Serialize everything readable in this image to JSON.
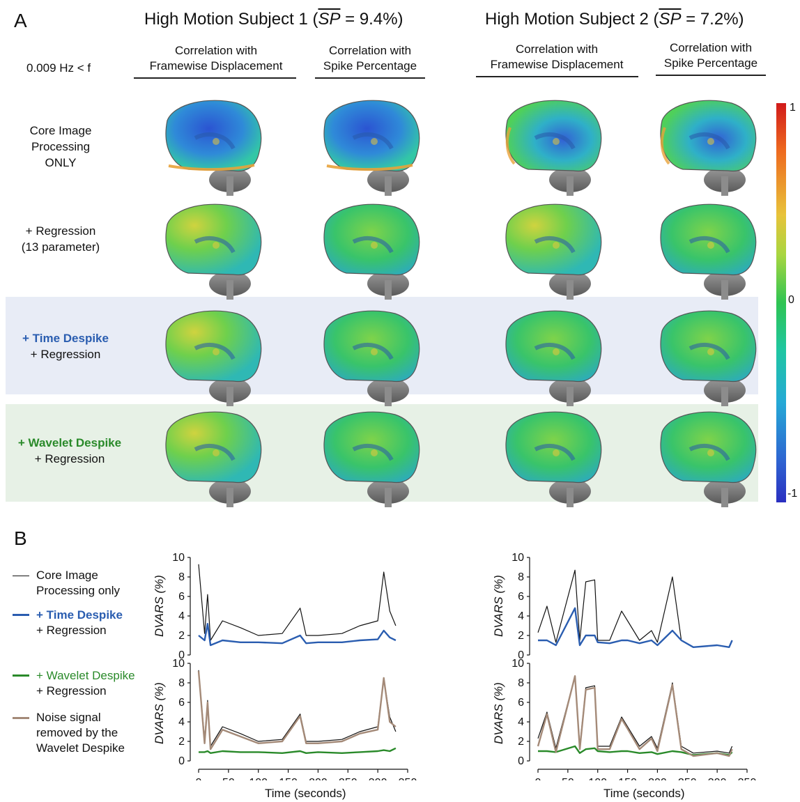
{
  "panelA": {
    "letter": "A",
    "subject1_title_pre": "High Motion Subject 1 (",
    "subject1_title_sym": "SP",
    "subject1_title_post": " = 9.4%)",
    "subject2_title_pre": "High Motion Subject 2 (",
    "subject2_title_sym": "SP",
    "subject2_title_post": " = 7.2%)",
    "freq_label": "0.009 Hz < f",
    "col_heads": [
      {
        "l1": "Correlation with",
        "l2": "Framewise Displacement"
      },
      {
        "l1": "Correlation with",
        "l2": "Spike Percentage"
      },
      {
        "l1": "Correlation with",
        "l2": "Framewise Displacement"
      },
      {
        "l1": "Correlation with",
        "l2": "Spike Percentage"
      }
    ],
    "rows": [
      {
        "l1": "Core Image",
        "l2": "Processing",
        "l3": "ONLY"
      },
      {
        "l1": "+ Regression",
        "l2": "(13 parameter)"
      },
      {
        "l1": "+ Time Despike",
        "l2": "+ Regression"
      },
      {
        "l1": "+ Wavelet Despike",
        "l2": "+ Regression"
      }
    ],
    "colorbar": {
      "max": "1",
      "mid": "0",
      "min": "-1"
    },
    "colors": {
      "time_band": "#e8ecf6",
      "wavelet_band": "#e7f1e6",
      "time_text": "#2a5db0",
      "wavelet_text": "#2a8a2a"
    }
  },
  "panelB": {
    "letter": "B",
    "legend": [
      {
        "l1": "Core Image",
        "l2": "Processing only",
        "color": "#111111"
      },
      {
        "l1": "+ Time Despike",
        "l2": "+ Regression",
        "color": "#2a5db0"
      },
      {
        "l1": "+ Wavelet Despike",
        "l2": "+ Regression",
        "color": "#2a8a2a"
      },
      {
        "l1": "Noise signal",
        "l2": "removed by the",
        "l3": "Wavelet Despike",
        "color": "#a48a78"
      }
    ],
    "ylabel": "DVARS (%)",
    "xlabel": "Time (seconds)",
    "yticks": [
      "10",
      "8",
      "6",
      "4",
      "2",
      "0"
    ],
    "xticks": [
      "0",
      "50",
      "100",
      "150",
      "200",
      "250",
      "300",
      "350"
    ]
  },
  "chart_data": [
    {
      "type": "line",
      "subject": 1,
      "xlabel": "Time (seconds)",
      "ylabel": "DVARS (%)",
      "xlim": [
        0,
        350
      ],
      "ylim": [
        0,
        10
      ],
      "x": [
        0,
        10,
        15,
        20,
        40,
        70,
        100,
        140,
        170,
        180,
        200,
        240,
        270,
        300,
        310,
        320,
        330
      ],
      "series": [
        {
          "name": "Core Image Processing only",
          "color": "#111111",
          "values": [
            9.3,
            2.2,
            6.2,
            1.5,
            3.5,
            2.8,
            2.0,
            2.2,
            4.8,
            2.0,
            2.0,
            2.2,
            3.0,
            3.5,
            8.5,
            4.5,
            3.0
          ]
        },
        {
          "name": "+ Time Despike + Regression",
          "color": "#2a5db0",
          "values": [
            2.0,
            1.5,
            3.2,
            1.0,
            1.5,
            1.3,
            1.3,
            1.2,
            2.0,
            1.2,
            1.3,
            1.3,
            1.5,
            1.6,
            2.5,
            1.8,
            1.5
          ]
        }
      ]
    },
    {
      "type": "line",
      "subject": 2,
      "xlabel": "Time (seconds)",
      "ylabel": "DVARS (%)",
      "xlim": [
        0,
        350
      ],
      "ylim": [
        0,
        10
      ],
      "x": [
        0,
        15,
        30,
        62,
        70,
        80,
        95,
        100,
        120,
        140,
        150,
        170,
        190,
        200,
        225,
        240,
        260,
        300,
        320,
        325
      ],
      "series": [
        {
          "name": "Core Image Processing only",
          "color": "#111111",
          "values": [
            2.3,
            5.0,
            1.3,
            8.7,
            1.5,
            7.5,
            7.7,
            1.5,
            1.5,
            4.5,
            3.5,
            1.5,
            2.5,
            1.3,
            8.0,
            1.5,
            0.8,
            1.0,
            0.8,
            1.5
          ]
        },
        {
          "name": "+ Time Despike + Regression",
          "color": "#2a5db0",
          "values": [
            1.5,
            1.5,
            1.0,
            4.8,
            1.0,
            2.0,
            2.0,
            1.3,
            1.2,
            1.5,
            1.5,
            1.2,
            1.5,
            1.0,
            2.5,
            1.5,
            0.8,
            1.0,
            0.8,
            1.5
          ]
        }
      ]
    },
    {
      "type": "line",
      "subject": 1,
      "xlabel": "Time (seconds)",
      "ylabel": "DVARS (%)",
      "xlim": [
        0,
        350
      ],
      "ylim": [
        0,
        10
      ],
      "x": [
        0,
        10,
        15,
        20,
        40,
        70,
        100,
        140,
        170,
        180,
        200,
        240,
        270,
        300,
        310,
        320,
        330
      ],
      "series": [
        {
          "name": "Core Image Processing only",
          "color": "#111111",
          "values": [
            9.3,
            2.2,
            6.2,
            1.5,
            3.5,
            2.8,
            2.0,
            2.2,
            4.8,
            2.0,
            2.0,
            2.2,
            3.0,
            3.5,
            8.5,
            4.5,
            3.0
          ]
        },
        {
          "name": "+ Wavelet Despike + Regression",
          "color": "#2a8a2a",
          "values": [
            0.9,
            0.9,
            1.0,
            0.8,
            1.0,
            0.9,
            0.9,
            0.8,
            1.0,
            0.8,
            0.9,
            0.8,
            0.9,
            1.0,
            1.1,
            1.0,
            1.3
          ]
        },
        {
          "name": "Noise signal removed by the Wavelet Despike",
          "color": "#a48a78",
          "values": [
            9.2,
            1.8,
            6.0,
            1.2,
            3.2,
            2.5,
            1.8,
            2.0,
            4.6,
            1.8,
            1.8,
            2.0,
            2.8,
            3.2,
            8.5,
            4.0,
            3.5
          ]
        }
      ]
    },
    {
      "type": "line",
      "subject": 2,
      "xlabel": "Time (seconds)",
      "ylabel": "DVARS (%)",
      "xlim": [
        0,
        350
      ],
      "ylim": [
        0,
        10
      ],
      "x": [
        0,
        15,
        30,
        62,
        70,
        80,
        95,
        100,
        120,
        140,
        150,
        170,
        190,
        200,
        225,
        240,
        260,
        300,
        320,
        325
      ],
      "series": [
        {
          "name": "Core Image Processing only",
          "color": "#111111",
          "values": [
            2.3,
            5.0,
            1.3,
            8.7,
            1.5,
            7.5,
            7.7,
            1.5,
            1.5,
            4.5,
            3.5,
            1.5,
            2.5,
            1.3,
            8.0,
            1.5,
            0.8,
            1.0,
            0.8,
            1.5
          ]
        },
        {
          "name": "+ Wavelet Despike + Regression",
          "color": "#2a8a2a",
          "values": [
            1.0,
            1.0,
            0.9,
            1.5,
            0.8,
            1.2,
            1.3,
            1.0,
            0.9,
            1.0,
            1.0,
            0.8,
            0.9,
            0.7,
            1.0,
            0.9,
            0.6,
            0.8,
            0.6,
            0.9
          ]
        },
        {
          "name": "Noise signal removed by the Wavelet Despike",
          "color": "#a48a78",
          "values": [
            1.5,
            4.8,
            0.9,
            8.7,
            1.2,
            7.3,
            7.5,
            1.2,
            1.2,
            4.3,
            3.3,
            1.2,
            2.3,
            1.0,
            7.8,
            1.2,
            0.5,
            0.8,
            0.5,
            1.2
          ]
        }
      ]
    }
  ]
}
